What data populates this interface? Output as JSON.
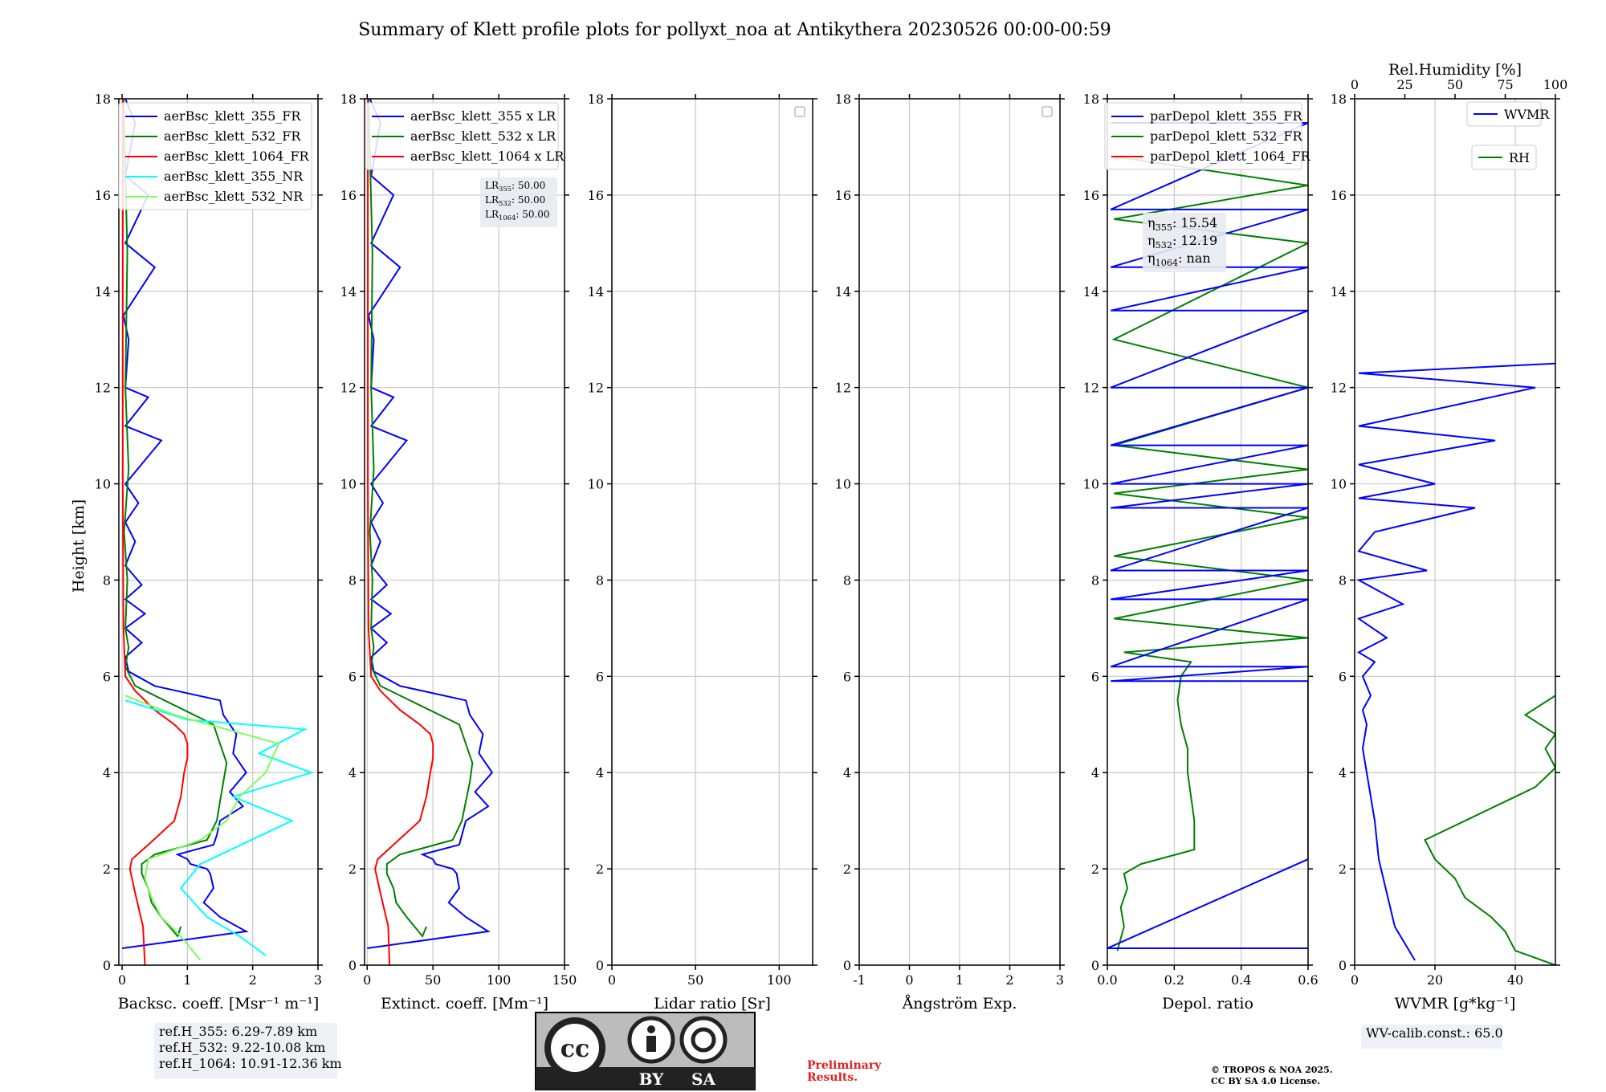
{
  "page": {
    "title": "Summary of Klett profile plots for pollyxt_noa at Antikythera 20230526 00:00-00:59",
    "ylabel": "Height [km]"
  },
  "colors": {
    "blue": "#0000ff",
    "green": "#008000",
    "red": "#ff0000",
    "cyan": "#00ffff",
    "lightgreen": "#7cfc5a"
  },
  "chart_data": [
    {
      "type": "line",
      "id": "backscatter",
      "xlabel": "Backsc. coeff. [Msr⁻¹ m⁻¹]",
      "xlim": [
        -0.05,
        3
      ],
      "xticks": [
        0,
        1,
        2,
        3
      ],
      "ylim": [
        0,
        18
      ],
      "yticks": [
        0,
        2,
        4,
        6,
        8,
        10,
        12,
        14,
        16,
        18
      ],
      "grid": true,
      "legend_position": "top-right",
      "legend": [
        "aerBsc_klett_355_FR",
        "aerBsc_klett_532_FR",
        "aerBsc_klett_1064_FR",
        "aerBsc_klett_355_NR",
        "aerBsc_klett_532_NR"
      ],
      "series": [
        {
          "name": "aerBsc_klett_355_FR",
          "color": "blue",
          "x": [
            0,
            1.9,
            1.5,
            1.25,
            1.4,
            1.35,
            1.3,
            1.05,
            1.0,
            0.85,
            1.4,
            1.45,
            1.5,
            1.85,
            1.65,
            1.9,
            1.7,
            1.75,
            1.55,
            1.5,
            0.5,
            0.1,
            0.05,
            0.3,
            0.05,
            0.35,
            0.05,
            0.3,
            0.05,
            0.2,
            0.05,
            0.25,
            0.05,
            0.6,
            0.05,
            0.4,
            0.05,
            0.1,
            0.02,
            0.5,
            0.05,
            0.4,
            0.05,
            0.2,
            0.05
          ],
          "y": [
            0.35,
            0.7,
            1.0,
            1.3,
            1.6,
            1.9,
            2.0,
            2.1,
            2.2,
            2.3,
            2.5,
            2.7,
            3.0,
            3.3,
            3.6,
            4.0,
            4.4,
            4.8,
            5.2,
            5.5,
            5.8,
            6.1,
            6.4,
            6.7,
            7.0,
            7.3,
            7.6,
            7.9,
            8.3,
            8.8,
            9.2,
            9.6,
            10.0,
            10.9,
            11.2,
            11.8,
            12.0,
            13.0,
            13.5,
            14.5,
            15.0,
            16.0,
            16.4,
            17.5,
            18.0
          ]
        },
        {
          "name": "aerBsc_klett_532_FR",
          "color": "green",
          "x": [
            0.9,
            0.85,
            0.6,
            0.45,
            0.4,
            0.3,
            0.3,
            0.5,
            1.3,
            1.45,
            1.5,
            1.55,
            1.6,
            1.5,
            1.4,
            0.8,
            0.2,
            0.05,
            0.1,
            0.05,
            0.08,
            0.03,
            0.1,
            0.05,
            0.08,
            0.02
          ],
          "y": [
            0.8,
            0.6,
            1.0,
            1.3,
            1.6,
            1.9,
            2.1,
            2.3,
            2.6,
            3.0,
            3.4,
            3.8,
            4.2,
            4.6,
            5.0,
            5.4,
            5.8,
            6.2,
            6.6,
            7.0,
            8.0,
            9.0,
            10.3,
            12.0,
            14.8,
            18.0
          ]
        },
        {
          "name": "aerBsc_klett_1064_FR",
          "color": "red",
          "x": [
            0.35,
            0.32,
            0.2,
            0.12,
            0.15,
            0.4,
            0.8,
            0.9,
            0.95,
            1.0,
            1.0,
            0.95,
            0.8,
            0.5,
            0.2,
            0.05,
            0.02,
            0.01,
            0.01
          ],
          "y": [
            0.0,
            0.8,
            1.5,
            2.0,
            2.2,
            2.5,
            3.0,
            3.5,
            4.0,
            4.3,
            4.6,
            4.8,
            5.0,
            5.3,
            5.7,
            6.0,
            7.0,
            10.0,
            18.0
          ]
        },
        {
          "name": "aerBsc_klett_355_NR",
          "color": "cyan",
          "x": [
            2.2,
            1.8,
            1.3,
            0.9,
            1.2,
            2.6,
            1.7,
            2.9,
            2.1,
            2.8,
            1.0,
            0.05
          ],
          "y": [
            0.2,
            0.6,
            1.0,
            1.6,
            2.1,
            3.0,
            3.5,
            4.0,
            4.4,
            4.9,
            5.1,
            5.5
          ]
        },
        {
          "name": "aerBsc_klett_532_NR",
          "color": "lightgreen",
          "x": [
            1.2,
            0.9,
            0.6,
            0.45,
            0.35,
            0.4,
            1.2,
            1.6,
            1.8,
            2.2,
            2.4,
            0.8,
            0.05
          ],
          "y": [
            0.1,
            0.6,
            1.0,
            1.4,
            1.8,
            2.2,
            2.6,
            3.0,
            3.5,
            4.0,
            4.6,
            5.2,
            5.6
          ]
        }
      ],
      "info_box": [
        "ref.H_355: 6.29-7.89 km",
        "ref.H_532: 9.22-10.08 km",
        "ref.H_1064: 10.91-12.36 km"
      ]
    },
    {
      "type": "line",
      "id": "extinction",
      "xlabel": "Extinct. coeff. [Mm⁻¹]",
      "xlim": [
        -2,
        150
      ],
      "xticks": [
        0,
        50,
        100,
        150
      ],
      "ylim": [
        0,
        18
      ],
      "yticks": [
        0,
        2,
        4,
        6,
        8,
        10,
        12,
        14,
        16,
        18
      ],
      "grid": true,
      "legend_position": "top-right",
      "legend": [
        "aerBsc_klett_355 x LR",
        "aerBsc_klett_532 x LR",
        "aerBsc_klett_1064 x LR"
      ],
      "annotation": {
        "lines": [
          {
            "label": "LR",
            "sub": "355",
            "value": ": 50.00"
          },
          {
            "label": "LR",
            "sub": "532",
            "value": ": 50.00"
          },
          {
            "label": "LR",
            "sub": "1064",
            "value": ": 50.00"
          }
        ]
      },
      "series": [
        {
          "name": "aerBsc_klett_355 x LR",
          "color": "blue",
          "x": [
            0,
            92,
            75,
            62,
            70,
            68,
            65,
            52,
            50,
            42,
            70,
            72,
            75,
            92,
            82,
            95,
            85,
            88,
            78,
            75,
            25,
            5,
            3,
            15,
            3,
            18,
            3,
            15,
            3,
            10,
            3,
            12,
            3,
            30,
            3,
            20,
            3,
            5,
            1,
            25,
            3,
            20,
            3,
            10,
            2
          ],
          "y": [
            0.35,
            0.7,
            1.0,
            1.3,
            1.6,
            1.9,
            2.0,
            2.1,
            2.2,
            2.3,
            2.5,
            2.7,
            3.0,
            3.3,
            3.6,
            4.0,
            4.4,
            4.8,
            5.2,
            5.5,
            5.8,
            6.1,
            6.4,
            6.7,
            7.0,
            7.3,
            7.6,
            7.9,
            8.3,
            8.8,
            9.2,
            9.6,
            10.0,
            10.9,
            11.2,
            11.8,
            12.0,
            13.0,
            13.5,
            14.5,
            15.0,
            16.0,
            16.4,
            17.5,
            18.0
          ]
        },
        {
          "name": "aerBsc_klett_532 x LR",
          "color": "green",
          "x": [
            45,
            42,
            30,
            22,
            20,
            15,
            15,
            25,
            65,
            72,
            75,
            78,
            80,
            75,
            70,
            40,
            10,
            3,
            5,
            3,
            4,
            2,
            5,
            3,
            4,
            1
          ],
          "y": [
            0.8,
            0.6,
            1.0,
            1.3,
            1.6,
            1.9,
            2.1,
            2.3,
            2.6,
            3.0,
            3.4,
            3.8,
            4.2,
            4.6,
            5.0,
            5.4,
            5.8,
            6.2,
            6.6,
            7.0,
            8.0,
            9.0,
            10.3,
            12.0,
            14.8,
            18.0
          ]
        },
        {
          "name": "aerBsc_klett_1064 x LR",
          "color": "red",
          "x": [
            17,
            16,
            10,
            6,
            8,
            20,
            40,
            45,
            48,
            50,
            50,
            48,
            40,
            25,
            10,
            3,
            1,
            0.5,
            0.5
          ],
          "y": [
            0.0,
            0.8,
            1.5,
            2.0,
            2.2,
            2.5,
            3.0,
            3.5,
            4.0,
            4.3,
            4.6,
            4.8,
            5.0,
            5.3,
            5.7,
            6.0,
            7.0,
            10.0,
            18.0
          ]
        }
      ]
    },
    {
      "type": "line",
      "id": "lidar_ratio",
      "xlabel": "Lidar ratio [Sr]",
      "xlim": [
        0,
        120
      ],
      "xticks": [
        0,
        50,
        100
      ],
      "ylim": [
        0,
        18
      ],
      "yticks": [
        0,
        2,
        4,
        6,
        8,
        10,
        12,
        14,
        16,
        18
      ],
      "grid": true,
      "legend_position": "top-right",
      "series": []
    },
    {
      "type": "line",
      "id": "angstrom",
      "xlabel": "Ångström Exp.",
      "xlim": [
        -1,
        3
      ],
      "xticks": [
        -1,
        0,
        1,
        2,
        3
      ],
      "ylim": [
        0,
        18
      ],
      "yticks": [
        0,
        2,
        4,
        6,
        8,
        10,
        12,
        14,
        16,
        18
      ],
      "grid": true,
      "legend_position": "top-right",
      "series": []
    },
    {
      "type": "line",
      "id": "depol",
      "xlabel": "Depol. ratio",
      "xlim": [
        0,
        0.6
      ],
      "xticks": [
        0.0,
        0.2,
        0.4,
        0.6
      ],
      "ylim": [
        0,
        18
      ],
      "yticks": [
        0,
        2,
        4,
        6,
        8,
        10,
        12,
        14,
        16,
        18
      ],
      "grid": true,
      "legend_position": "top-right",
      "legend": [
        "parDepol_klett_355_FR",
        "parDepol_klett_532_FR",
        "parDepol_klett_1064_FR"
      ],
      "annotation": {
        "lines": [
          {
            "label": "η",
            "sub": "355",
            "value": ": 15.54"
          },
          {
            "label": "η",
            "sub": "532",
            "value": ": 12.19"
          },
          {
            "label": "η",
            "sub": "1064",
            "value": ": nan"
          }
        ]
      },
      "series": [
        {
          "name": "parDepol_klett_532_FR",
          "color": "green",
          "x": [
            0.03,
            0.05,
            0.04,
            0.06,
            0.05,
            0.1,
            0.26,
            0.26,
            0.25,
            0.24,
            0.24,
            0.22,
            0.21,
            0.22,
            0.25,
            0.05,
            0.6,
            0.02,
            0.6,
            0.02,
            0.6,
            0.02,
            0.6,
            0.02,
            0.6,
            0.02,
            0.6,
            0.02,
            0.6,
            0.02
          ],
          "y": [
            0.3,
            0.8,
            1.2,
            1.6,
            1.9,
            2.1,
            2.4,
            3.0,
            3.5,
            4.0,
            4.5,
            5.0,
            5.5,
            6.0,
            6.3,
            6.5,
            6.8,
            7.2,
            8.0,
            8.5,
            9.3,
            9.8,
            10.3,
            10.8,
            12.0,
            13.0,
            15.0,
            15.5,
            16.2,
            16.8
          ]
        },
        {
          "name": "parDepol_klett_355_FR",
          "color": "blue",
          "x": [
            0.6,
            0.0,
            0.6,
            0.6,
            0.01,
            0.6,
            0.01,
            0.6,
            0.01,
            0.6,
            0.01,
            0.6,
            0.01,
            0.6,
            0.01,
            0.6,
            0.01,
            0.6,
            0.01,
            0.6,
            0.01,
            0.6,
            0.01,
            0.6,
            0.01,
            0.6,
            0.01
          ],
          "y": [
            0.35,
            0.35,
            2.2,
            5.9,
            5.9,
            6.2,
            6.2,
            7.6,
            7.6,
            8.2,
            8.2,
            9.5,
            9.5,
            10.0,
            10.0,
            10.8,
            10.8,
            12.0,
            12.0,
            13.6,
            13.6,
            14.5,
            14.5,
            15.7,
            15.7,
            17.5,
            17.5
          ]
        }
      ]
    },
    {
      "type": "line",
      "id": "wvmr",
      "xlabel": "WVMR [g*kg⁻¹]",
      "xlim": [
        0,
        50
      ],
      "xticks": [
        0,
        20,
        40
      ],
      "ylim": [
        0,
        18
      ],
      "yticks": [
        0,
        2,
        4,
        6,
        8,
        10,
        12,
        14,
        16,
        18
      ],
      "top_axis": {
        "label": "Rel.Humidity [%]",
        "ticks": [
          0,
          25,
          50,
          75,
          100
        ],
        "lim": [
          0,
          100
        ]
      },
      "grid": true,
      "legend_position": "top-right",
      "legend": [
        "WVMR",
        "RH"
      ],
      "series": [
        {
          "name": "WVMR",
          "color": "blue",
          "x": [
            15,
            10,
            8,
            6,
            5,
            4,
            3,
            2,
            3,
            2,
            4,
            2,
            5,
            1,
            8,
            1,
            12,
            1,
            18,
            1,
            5,
            30,
            1,
            20,
            1,
            35,
            1,
            45,
            1,
            50
          ],
          "y": [
            0.1,
            0.8,
            1.5,
            2.2,
            3.0,
            3.5,
            4.0,
            4.5,
            5.0,
            5.3,
            5.6,
            6.0,
            6.3,
            6.5,
            6.8,
            7.2,
            7.5,
            8.0,
            8.2,
            8.6,
            9.0,
            9.5,
            9.7,
            10.0,
            10.4,
            10.9,
            11.2,
            12.0,
            12.3,
            12.5
          ]
        },
        {
          "name": "RH",
          "color": "green",
          "x": [
            100,
            80,
            75,
            68,
            55,
            50,
            40,
            35,
            55,
            70,
            90,
            100,
            95,
            100,
            85,
            100
          ],
          "y": [
            0.0,
            0.3,
            0.7,
            1.0,
            1.4,
            1.8,
            2.2,
            2.6,
            3.0,
            3.3,
            3.7,
            4.1,
            4.5,
            4.8,
            5.2,
            5.6
          ]
        }
      ],
      "info_box": [
        "WV-calib.const.: 65.0"
      ]
    }
  ],
  "footer": {
    "cc_left": "BY",
    "cc_right": "SA",
    "preliminary": [
      "Preliminary",
      "Results."
    ],
    "copyright": [
      "© TROPOS & NOA 2025.",
      "CC BY SA 4.0 License."
    ]
  }
}
